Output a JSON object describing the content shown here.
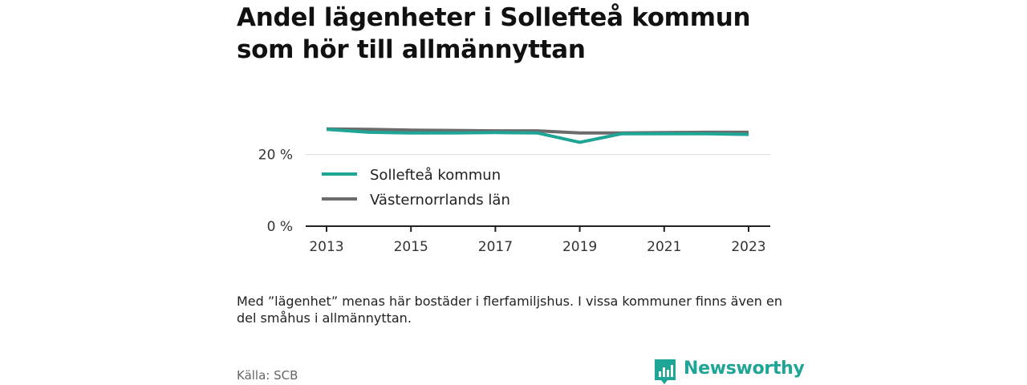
{
  "title": "Andel lägenheter i Sollefteå kommun som hör till allmännyttan",
  "note": "Med ”lägenhet” menas här bostäder i flerfamiljshus. I vissa kommuner finns även en del småhus i allmännyttan.",
  "source": "Källa: SCB",
  "brand": {
    "name": "Newsworthy",
    "icon": "newsworthy-logo-icon",
    "color": "#1fa596"
  },
  "chart_data": {
    "type": "line",
    "x": [
      2013,
      2014,
      2015,
      2016,
      2017,
      2018,
      2019,
      2020,
      2021,
      2022,
      2023
    ],
    "x_tick_labels": [
      "2013",
      "2015",
      "2017",
      "2019",
      "2021",
      "2023"
    ],
    "x_ticks": [
      2013,
      2015,
      2017,
      2019,
      2021,
      2023
    ],
    "y_tick_labels": [
      "0 %",
      "20 %"
    ],
    "y_ticks": [
      0,
      20
    ],
    "ylim": [
      0,
      34
    ],
    "grid": true,
    "legend_position": "inside-left",
    "series": [
      {
        "name": "Sollefteå kommun",
        "color": "#1fa596",
        "values": [
          27.0,
          26.2,
          26.0,
          26.0,
          26.1,
          26.0,
          23.4,
          25.8,
          25.8,
          25.8,
          25.6
        ]
      },
      {
        "name": "Västernorrlands län",
        "color": "#6b6b6b",
        "values": [
          27.1,
          27.0,
          26.8,
          26.7,
          26.6,
          26.6,
          26.0,
          26.0,
          26.1,
          26.2,
          26.2
        ]
      }
    ]
  }
}
